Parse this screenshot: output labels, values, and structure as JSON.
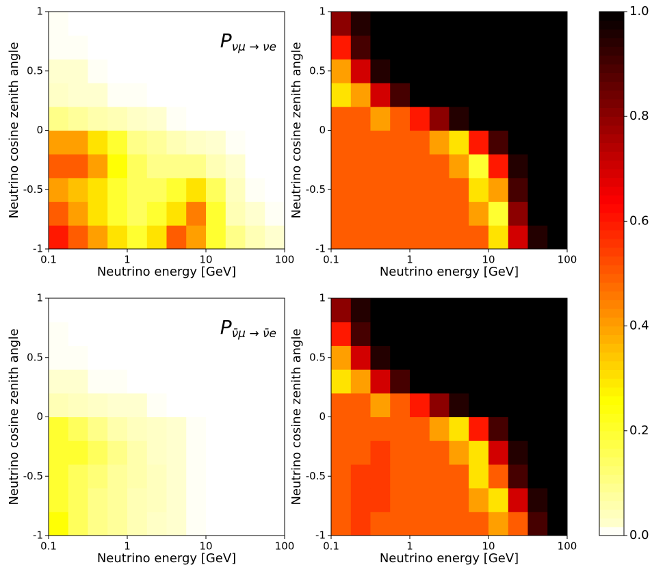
{
  "chart_data": [
    {
      "type": "heatmap",
      "title": {
        "main": "P",
        "sub": "νμ → νe"
      },
      "xlabel": "Neutrino energy [GeV]",
      "ylabel": "Neutrino cosine zenith angle",
      "xscale": "log",
      "colormap": "hot_r",
      "zlim": [
        0,
        1
      ],
      "xlim": [
        0.1,
        100
      ],
      "ylim": [
        -1,
        1
      ],
      "xticks": [
        0.1,
        1,
        10,
        100
      ],
      "yticks": [
        -1,
        -0.5,
        0,
        0.5,
        1
      ],
      "xbins": [
        0.1,
        0.178,
        0.316,
        0.562,
        1,
        1.78,
        3.16,
        5.62,
        10,
        17.8,
        31.6,
        56.2,
        100
      ],
      "ybins": [
        -1,
        -0.8,
        -0.6,
        -0.4,
        -0.2,
        0,
        0.2,
        0.4,
        0.6,
        0.8,
        1
      ],
      "values": [
        [
          0.6,
          0.5,
          0.4,
          0.3,
          0.2,
          0.3,
          0.5,
          0.4,
          0.2,
          0.1,
          0.05,
          0.02
        ],
        [
          0.5,
          0.4,
          0.3,
          0.2,
          0.15,
          0.2,
          0.3,
          0.45,
          0.2,
          0.05,
          0.02,
          0.01
        ],
        [
          0.4,
          0.35,
          0.3,
          0.2,
          0.15,
          0.15,
          0.2,
          0.3,
          0.15,
          0.04,
          0.01,
          0
        ],
        [
          0.5,
          0.5,
          0.4,
          0.25,
          0.15,
          0.1,
          0.1,
          0.1,
          0.05,
          0.02,
          0,
          0
        ],
        [
          0.4,
          0.4,
          0.3,
          0.2,
          0.1,
          0.08,
          0.05,
          0.03,
          0.02,
          0.01,
          0,
          0
        ],
        [
          0.1,
          0.08,
          0.06,
          0.05,
          0.03,
          0.02,
          0.01,
          0,
          0,
          0,
          0,
          0
        ],
        [
          0.03,
          0.02,
          0.02,
          0.01,
          0.01,
          0,
          0,
          0,
          0,
          0,
          0,
          0
        ],
        [
          0.02,
          0.02,
          0.01,
          0,
          0,
          0,
          0,
          0,
          0,
          0,
          0,
          0
        ],
        [
          0.01,
          0.01,
          0,
          0,
          0,
          0,
          0,
          0,
          0,
          0,
          0,
          0
        ],
        [
          0.01,
          0,
          0,
          0,
          0,
          0,
          0,
          0,
          0,
          0,
          0,
          0
        ]
      ]
    },
    {
      "type": "heatmap",
      "title": {
        "main": "P",
        "sub": "νμ → νμ"
      },
      "xlabel": "Neutrino energy [GeV]",
      "ylabel": "Neutrino cosine zenith angle",
      "xscale": "log",
      "colormap": "hot_r",
      "zlim": [
        0,
        1
      ],
      "xlim": [
        0.1,
        100
      ],
      "ylim": [
        -1,
        1
      ],
      "xticks": [
        0.1,
        1,
        10,
        100
      ],
      "yticks": [
        -1,
        -0.5,
        0,
        0.5,
        1
      ],
      "xbins": [
        0.1,
        0.178,
        0.316,
        0.562,
        1,
        1.78,
        3.16,
        5.62,
        10,
        17.8,
        31.6,
        56.2,
        100
      ],
      "ybins": [
        -1,
        -0.8,
        -0.6,
        -0.4,
        -0.2,
        0,
        0.2,
        0.4,
        0.6,
        0.8,
        1
      ],
      "values": [
        [
          0.5,
          0.5,
          0.5,
          0.5,
          0.5,
          0.5,
          0.5,
          0.5,
          0.3,
          0.7,
          0.95,
          1
        ],
        [
          0.5,
          0.5,
          0.5,
          0.5,
          0.5,
          0.5,
          0.5,
          0.4,
          0.2,
          0.8,
          1,
          1
        ],
        [
          0.5,
          0.5,
          0.5,
          0.5,
          0.5,
          0.5,
          0.5,
          0.3,
          0.4,
          0.9,
          1,
          1
        ],
        [
          0.5,
          0.5,
          0.5,
          0.5,
          0.5,
          0.5,
          0.4,
          0.2,
          0.6,
          0.95,
          1,
          1
        ],
        [
          0.5,
          0.5,
          0.5,
          0.5,
          0.5,
          0.4,
          0.3,
          0.6,
          0.9,
          1,
          1,
          1
        ],
        [
          0.5,
          0.5,
          0.4,
          0.5,
          0.6,
          0.8,
          0.95,
          1,
          1,
          1,
          1,
          1
        ],
        [
          0.3,
          0.4,
          0.7,
          0.9,
          1,
          1,
          1,
          1,
          1,
          1,
          1,
          1
        ],
        [
          0.4,
          0.7,
          0.95,
          1,
          1,
          1,
          1,
          1,
          1,
          1,
          1,
          1
        ],
        [
          0.6,
          0.9,
          1,
          1,
          1,
          1,
          1,
          1,
          1,
          1,
          1,
          1
        ],
        [
          0.8,
          0.95,
          1,
          1,
          1,
          1,
          1,
          1,
          1,
          1,
          1,
          1
        ]
      ]
    },
    {
      "type": "heatmap",
      "title": {
        "main": "P",
        "sub": "ν̄μ → ν̄e"
      },
      "xlabel": "Neutrino energy [GeV]",
      "ylabel": "Neutrino cosine zenith angle",
      "xscale": "log",
      "colormap": "hot_r",
      "zlim": [
        0,
        1
      ],
      "xlim": [
        0.1,
        100
      ],
      "ylim": [
        -1,
        1
      ],
      "xticks": [
        0.1,
        1,
        10,
        100
      ],
      "yticks": [
        -1,
        -0.5,
        0,
        0.5,
        1
      ],
      "xbins": [
        0.1,
        0.178,
        0.316,
        0.562,
        1,
        1.78,
        3.16,
        5.62,
        10,
        17.8,
        31.6,
        56.2,
        100
      ],
      "ybins": [
        -1,
        -0.8,
        -0.6,
        -0.4,
        -0.2,
        0,
        0.2,
        0.4,
        0.6,
        0.8,
        1
      ],
      "values": [
        [
          0.25,
          0.15,
          0.1,
          0.08,
          0.05,
          0.03,
          0.02,
          0.01,
          0,
          0,
          0,
          0
        ],
        [
          0.2,
          0.15,
          0.1,
          0.08,
          0.05,
          0.04,
          0.02,
          0.01,
          0,
          0,
          0,
          0
        ],
        [
          0.2,
          0.15,
          0.12,
          0.08,
          0.06,
          0.04,
          0.02,
          0.01,
          0,
          0,
          0,
          0
        ],
        [
          0.2,
          0.2,
          0.15,
          0.1,
          0.06,
          0.03,
          0.02,
          0.01,
          0,
          0,
          0,
          0
        ],
        [
          0.2,
          0.15,
          0.1,
          0.06,
          0.04,
          0.03,
          0.02,
          0.01,
          0,
          0,
          0,
          0
        ],
        [
          0.05,
          0.04,
          0.03,
          0.02,
          0.02,
          0.01,
          0,
          0,
          0,
          0,
          0,
          0
        ],
        [
          0.02,
          0.02,
          0.01,
          0.01,
          0,
          0,
          0,
          0,
          0,
          0,
          0,
          0
        ],
        [
          0.01,
          0.01,
          0,
          0,
          0,
          0,
          0,
          0,
          0,
          0,
          0,
          0
        ],
        [
          0.01,
          0,
          0,
          0,
          0,
          0,
          0,
          0,
          0,
          0,
          0,
          0
        ],
        [
          0,
          0,
          0,
          0,
          0,
          0,
          0,
          0,
          0,
          0,
          0,
          0
        ]
      ]
    },
    {
      "type": "heatmap",
      "title": {
        "main": "P",
        "sub": "ν̄μ → ν̄μ"
      },
      "xlabel": "Neutrino energy [GeV]",
      "ylabel": "Neutrino cosine zenith angle",
      "xscale": "log",
      "colormap": "hot_r",
      "zlim": [
        0,
        1
      ],
      "xlim": [
        0.1,
        100
      ],
      "ylim": [
        -1,
        1
      ],
      "xticks": [
        0.1,
        1,
        10,
        100
      ],
      "yticks": [
        -1,
        -0.5,
        0,
        0.5,
        1
      ],
      "xbins": [
        0.1,
        0.178,
        0.316,
        0.562,
        1,
        1.78,
        3.16,
        5.62,
        10,
        17.8,
        31.6,
        56.2,
        100
      ],
      "ybins": [
        -1,
        -0.8,
        -0.6,
        -0.4,
        -0.2,
        0,
        0.2,
        0.4,
        0.6,
        0.8,
        1
      ],
      "values": [
        [
          0.5,
          0.55,
          0.5,
          0.5,
          0.5,
          0.5,
          0.5,
          0.5,
          0.4,
          0.5,
          0.9,
          1
        ],
        [
          0.5,
          0.55,
          0.55,
          0.5,
          0.5,
          0.5,
          0.5,
          0.4,
          0.3,
          0.7,
          0.95,
          1
        ],
        [
          0.5,
          0.55,
          0.55,
          0.5,
          0.5,
          0.5,
          0.5,
          0.3,
          0.5,
          0.9,
          1,
          1
        ],
        [
          0.5,
          0.5,
          0.55,
          0.5,
          0.5,
          0.5,
          0.4,
          0.3,
          0.7,
          0.95,
          1,
          1
        ],
        [
          0.5,
          0.5,
          0.5,
          0.5,
          0.5,
          0.4,
          0.3,
          0.6,
          0.9,
          1,
          1,
          1
        ],
        [
          0.5,
          0.5,
          0.4,
          0.5,
          0.6,
          0.8,
          0.95,
          1,
          1,
          1,
          1,
          1
        ],
        [
          0.3,
          0.4,
          0.7,
          0.9,
          1,
          1,
          1,
          1,
          1,
          1,
          1,
          1
        ],
        [
          0.4,
          0.7,
          0.95,
          1,
          1,
          1,
          1,
          1,
          1,
          1,
          1,
          1
        ],
        [
          0.6,
          0.9,
          1,
          1,
          1,
          1,
          1,
          1,
          1,
          1,
          1,
          1
        ],
        [
          0.8,
          0.95,
          1,
          1,
          1,
          1,
          1,
          1,
          1,
          1,
          1,
          1
        ]
      ]
    },
    {
      "type": "colorbar",
      "colormap": "hot_r",
      "zlim": [
        0,
        1
      ],
      "zticks": [
        {
          "value": 0,
          "label": "0.0"
        },
        0.2,
        0.4,
        0.6,
        0.8,
        {
          "value": 1,
          "label": "1.0"
        }
      ]
    }
  ]
}
